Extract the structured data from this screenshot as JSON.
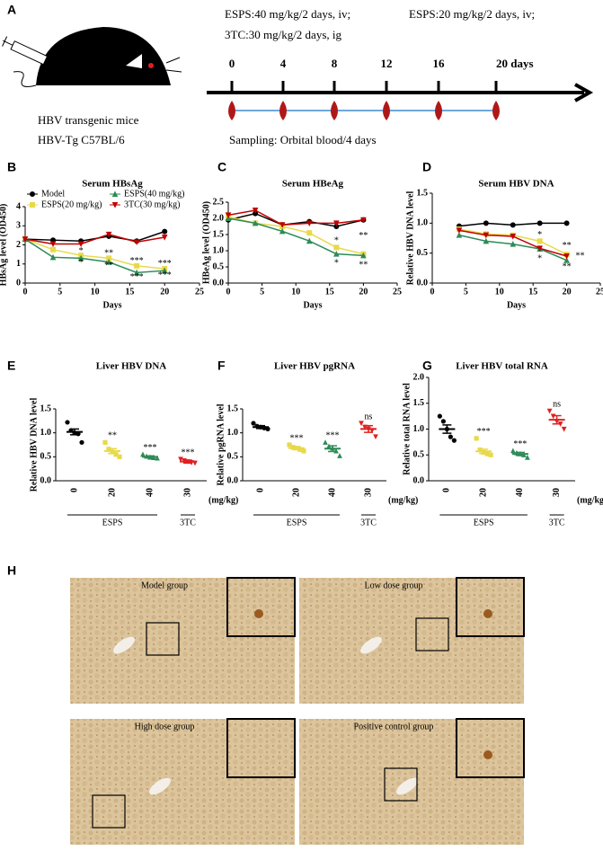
{
  "panel_a": {
    "letter": "A",
    "dose_lines": [
      "ESPS:40 mg/kg/2 days, iv;",
      "3TC:30 mg/kg/2 days, ig",
      "ESPS:20 mg/kg/2 days, iv;"
    ],
    "timeline": [
      "0",
      "4",
      "8",
      "12",
      "16",
      "20 days"
    ],
    "mouse_lines": [
      "HBV transgenic mice",
      "HBV-Tg C57BL/6"
    ],
    "sampling": "Sampling: Orbital blood/4 days"
  },
  "chart_data": [
    {
      "letter": "B",
      "type": "line",
      "title": "Serum HBsAg",
      "x_label": "Days",
      "y_label": "HBsAg level (OD450)",
      "x": [
        0,
        4,
        8,
        12,
        16,
        20
      ],
      "xlim": [
        0,
        25
      ],
      "xticks": [
        0,
        5,
        10,
        15,
        20,
        25
      ],
      "ylim": [
        0,
        4
      ],
      "yticks": [
        0,
        1,
        2,
        3,
        4
      ],
      "legend": "top",
      "series": [
        {
          "name": "Model",
          "color": "#000000",
          "marker": "circle",
          "values": [
            2.3,
            2.25,
            2.2,
            2.45,
            2.2,
            2.7
          ]
        },
        {
          "name": "ESPS(20 mg/kg)",
          "color": "#e8d94a",
          "marker": "square",
          "values": [
            2.3,
            1.75,
            1.45,
            1.3,
            0.9,
            0.75
          ]
        },
        {
          "name": "ESPS(40 mg/kg)",
          "color": "#2e8b57",
          "marker": "triangle",
          "values": [
            2.3,
            1.35,
            1.3,
            1.1,
            0.55,
            0.65
          ]
        },
        {
          "name": "3TC(30 mg/kg)",
          "color": "#c00000",
          "marker": "down",
          "values": [
            2.3,
            2.05,
            2.05,
            2.55,
            2.15,
            2.4
          ]
        }
      ],
      "annotations": [
        {
          "x": 8,
          "y": 1.65,
          "text": "*"
        },
        {
          "x": 8,
          "y": 1.05,
          "text": "*"
        },
        {
          "x": 12,
          "y": 1.55,
          "text": "**"
        },
        {
          "x": 12,
          "y": 0.9,
          "text": "**"
        },
        {
          "x": 16,
          "y": 1.15,
          "text": "***"
        },
        {
          "x": 16,
          "y": 0.3,
          "text": "***"
        },
        {
          "x": 20,
          "y": 1.0,
          "text": "***"
        },
        {
          "x": 20,
          "y": 0.4,
          "text": "***"
        }
      ]
    },
    {
      "letter": "C",
      "type": "line",
      "title": "Serum HBeAg",
      "x_label": "Days",
      "y_label": "HBeAg level (OD450)",
      "x": [
        0,
        4,
        8,
        12,
        16,
        20
      ],
      "xlim": [
        0,
        25
      ],
      "xticks": [
        0,
        5,
        10,
        15,
        20,
        25
      ],
      "ylim": [
        0,
        2.5
      ],
      "yticks": [
        {
          "value": 0,
          "label": "0.0"
        },
        0.5,
        {
          "value": 1,
          "label": "1.0"
        },
        1.5,
        {
          "value": 2,
          "label": "2.0"
        },
        2.5
      ],
      "series": [
        {
          "color": "#000000",
          "marker": "circle",
          "values": [
            1.95,
            2.15,
            1.8,
            1.9,
            1.75,
            1.95
          ]
        },
        {
          "color": "#e8d94a",
          "marker": "square",
          "values": [
            2.05,
            1.85,
            1.75,
            1.55,
            1.1,
            0.9
          ]
        },
        {
          "color": "#2e8b57",
          "marker": "triangle",
          "values": [
            2.0,
            1.85,
            1.6,
            1.3,
            0.9,
            0.85
          ]
        },
        {
          "color": "#c00000",
          "marker": "down",
          "values": [
            2.1,
            2.25,
            1.8,
            1.85,
            1.85,
            1.95
          ]
        }
      ],
      "annotations": [
        {
          "x": 16,
          "y": 1.3,
          "text": "*"
        },
        {
          "x": 16,
          "y": 0.6,
          "text": "*"
        },
        {
          "x": 20,
          "y": 1.45,
          "text": "**"
        },
        {
          "x": 20,
          "y": 0.55,
          "text": "**"
        }
      ]
    },
    {
      "letter": "D",
      "type": "line",
      "title": "Serum HBV DNA",
      "x_label": "Days",
      "y_label": "Relative HBV DNA level",
      "x": [
        4,
        8,
        12,
        16,
        20
      ],
      "xlim": [
        0,
        25
      ],
      "xticks": [
        0,
        5,
        10,
        15,
        20,
        25
      ],
      "ylim": [
        0,
        1.5
      ],
      "yticks": [
        {
          "value": 0,
          "label": "0.0"
        },
        0.5,
        {
          "value": 1,
          "label": "1.0"
        },
        1.5
      ],
      "series": [
        {
          "color": "#000000",
          "marker": "circle",
          "values": [
            0.95,
            1.0,
            0.97,
            1.0,
            1.0
          ]
        },
        {
          "color": "#e8d94a",
          "marker": "square",
          "values": [
            0.9,
            0.82,
            0.8,
            0.7,
            0.48
          ]
        },
        {
          "color": "#2e8b57",
          "marker": "triangle",
          "values": [
            0.8,
            0.7,
            0.65,
            0.57,
            0.38
          ]
        },
        {
          "color": "#c00000",
          "marker": "down",
          "values": [
            0.88,
            0.8,
            0.78,
            0.58,
            0.45
          ]
        }
      ],
      "annotations": [
        {
          "x": 16,
          "y": 0.8,
          "text": "*"
        },
        {
          "x": 16,
          "y": 0.4,
          "text": "*"
        },
        {
          "x": 20,
          "y": 0.62,
          "text": "**"
        },
        {
          "x": 22,
          "y": 0.45,
          "text": "**"
        },
        {
          "x": 20,
          "y": 0.27,
          "text": "**"
        }
      ]
    },
    {
      "letter": "E",
      "type": "dot",
      "title": "Liver HBV DNA",
      "y_label": "Relative HBV DNA level",
      "categories": [
        "0",
        "20",
        "40",
        "30"
      ],
      "colors": [
        "#000000",
        "#e8d94a",
        "#2e8b57",
        "#e02020"
      ],
      "markers": [
        "circle",
        "square",
        "triangle",
        "down"
      ],
      "means": [
        1.02,
        0.62,
        0.5,
        0.4
      ],
      "errors": [
        0.06,
        0.05,
        0.02,
        0.03
      ],
      "points": [
        [
          1.22,
          1.05,
          1.0,
          0.98,
          0.8
        ],
        [
          0.8,
          0.66,
          0.6,
          0.55,
          0.5
        ],
        [
          0.55,
          0.51,
          0.49,
          0.48,
          0.47
        ],
        [
          0.45,
          0.42,
          0.4,
          0.38,
          0.37
        ]
      ],
      "significance": [
        null,
        "**",
        "***",
        "***"
      ],
      "ylim": [
        0,
        1.5
      ],
      "yticks": [
        {
          "value": 0,
          "label": "0.0"
        },
        0.5,
        {
          "value": 1,
          "label": "1.0"
        },
        1.5
      ],
      "group_labels": [
        "ESPS",
        "3TC"
      ],
      "unit_label": "(mg/kg)"
    },
    {
      "letter": "F",
      "type": "dot",
      "title": "Liver HBV pgRNA",
      "y_label": "Relative pgRNA level",
      "categories": [
        "0",
        "20",
        "40",
        "30"
      ],
      "colors": [
        "#000000",
        "#e8d94a",
        "#2e8b57",
        "#e02020"
      ],
      "markers": [
        "circle",
        "square",
        "triangle",
        "down"
      ],
      "means": [
        1.12,
        0.68,
        0.67,
        1.08
      ],
      "errors": [
        0.03,
        0.03,
        0.06,
        0.07
      ],
      "points": [
        [
          1.2,
          1.14,
          1.12,
          1.1,
          1.08
        ],
        [
          0.75,
          0.7,
          0.68,
          0.65,
          0.62
        ],
        [
          0.8,
          0.72,
          0.68,
          0.62,
          0.52
        ],
        [
          1.2,
          1.12,
          1.08,
          1.05,
          0.92
        ]
      ],
      "significance": [
        null,
        "***",
        "***",
        "ns"
      ],
      "ylim": [
        0,
        1.5
      ],
      "yticks": [
        {
          "value": 0,
          "label": "0.0"
        },
        0.5,
        {
          "value": 1,
          "label": "1.0"
        },
        1.5
      ],
      "group_labels": [
        "ESPS",
        "3TC"
      ],
      "unit_label": "(mg/kg)"
    },
    {
      "letter": "G",
      "type": "dot",
      "title": "Liver HBV total RNA",
      "y_label": "Relative  total RNA level",
      "categories": [
        "0",
        "20",
        "40",
        "30"
      ],
      "colors": [
        "#000000",
        "#e8d94a",
        "#2e8b57",
        "#e02020"
      ],
      "markers": [
        "circle",
        "square",
        "triangle",
        "down"
      ],
      "means": [
        1.0,
        0.57,
        0.52,
        1.18
      ],
      "errors": [
        0.08,
        0.04,
        0.03,
        0.08
      ],
      "points": [
        [
          1.25,
          1.15,
          1.0,
          0.85,
          0.78
        ],
        [
          0.82,
          0.6,
          0.55,
          0.52,
          0.5
        ],
        [
          0.58,
          0.54,
          0.52,
          0.5,
          0.45
        ],
        [
          1.35,
          1.25,
          1.15,
          1.1,
          1.0
        ]
      ],
      "significance": [
        null,
        "***",
        "***",
        "ns"
      ],
      "ylim": [
        0,
        2.0
      ],
      "yticks": [
        {
          "value": 0,
          "label": "0.0"
        },
        0.5,
        {
          "value": 1,
          "label": "1.0"
        },
        1.5,
        {
          "value": 2,
          "label": "2.0"
        }
      ],
      "group_labels": [
        "ESPS",
        "3TC"
      ],
      "unit_label": "(mg/kg)"
    }
  ],
  "panel_h": {
    "letter": "H",
    "images": [
      "Model group",
      "Low dose group",
      "High dose group",
      "Positive control group"
    ]
  }
}
